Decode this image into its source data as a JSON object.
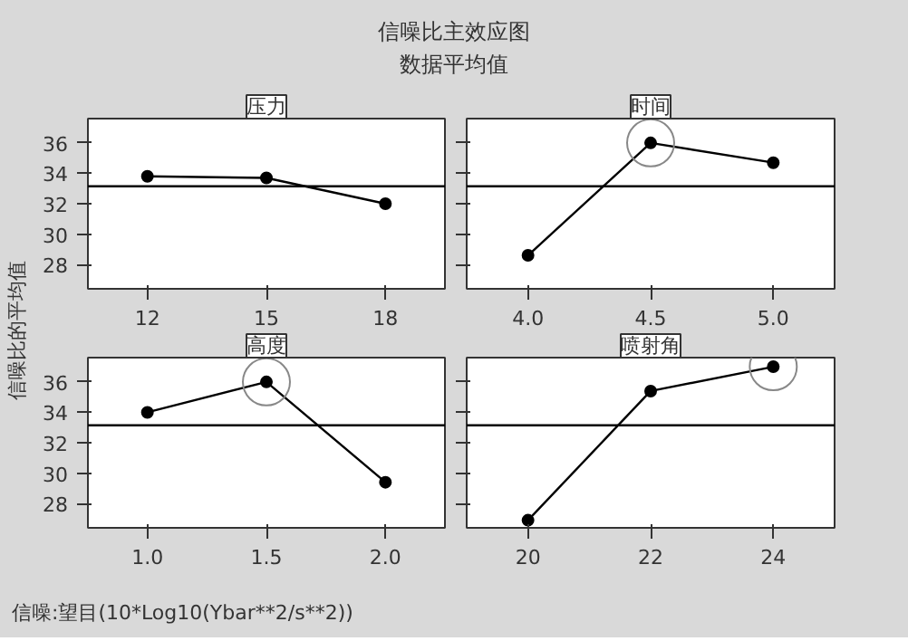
{
  "chart_data": [
    {
      "type": "other",
      "title": "信噪比主效应图",
      "subtitle": "数据平均值",
      "ylabel": "信噪比的平均值",
      "annotations": [
        "信噪:望目(10*Log10(Ybar**2/s**2))"
      ]
    },
    {
      "type": "line",
      "title": "压力",
      "x": [
        12,
        15,
        18
      ],
      "xlim": [
        10.5,
        19.5
      ],
      "xticks": [
        12,
        15,
        18
      ],
      "ylim": [
        26.4,
        37.6
      ],
      "yticks": [
        28,
        30,
        32,
        34,
        36
      ],
      "grid": false,
      "marker": "circle",
      "line_style": "solid",
      "ref_lines": [
        {
          "axis": "y",
          "value": 33.15,
          "color": "#000000"
        }
      ],
      "series": [
        {
          "color": "#000000",
          "values": [
            33.8,
            33.7,
            32.0
          ]
        }
      ]
    },
    {
      "type": "line",
      "title": "时间",
      "x": [
        4.0,
        4.5,
        5.0
      ],
      "xlim": [
        3.75,
        5.25
      ],
      "xticks": [
        {
          "value": 4.0,
          "label": "4.0"
        },
        {
          "value": 4.5,
          "label": "4.5"
        },
        {
          "value": 5.0,
          "label": "5.0"
        }
      ],
      "ylim": [
        26.4,
        37.6
      ],
      "yticks": [
        28,
        30,
        32,
        34,
        36
      ],
      "tick_labels": "x",
      "grid": false,
      "marker": "circle",
      "line_style": "solid",
      "ref_lines": [
        {
          "axis": "y",
          "value": 33.15,
          "color": "#000000"
        }
      ],
      "series": [
        {
          "color": "#000000",
          "values": [
            28.6,
            36.0,
            34.7
          ]
        },
        {
          "type": "scatter",
          "marker": "circle",
          "color": "#888888",
          "x": [
            4.5
          ],
          "values": [
            36.0
          ]
        }
      ]
    },
    {
      "type": "line",
      "title": "高度",
      "x": [
        1.0,
        1.5,
        2.0
      ],
      "xlim": [
        0.75,
        2.25
      ],
      "xticks": [
        {
          "value": 1.0,
          "label": "1.0"
        },
        {
          "value": 1.5,
          "label": "1.5"
        },
        {
          "value": 2.0,
          "label": "2.0"
        }
      ],
      "ylim": [
        26.4,
        37.6
      ],
      "yticks": [
        28,
        30,
        32,
        34,
        36
      ],
      "grid": false,
      "marker": "circle",
      "line_style": "solid",
      "ref_lines": [
        {
          "axis": "y",
          "value": 33.15,
          "color": "#000000"
        }
      ],
      "series": [
        {
          "color": "#000000",
          "values": [
            34.0,
            36.0,
            29.4
          ]
        },
        {
          "type": "scatter",
          "marker": "circle",
          "color": "#888888",
          "x": [
            1.5
          ],
          "values": [
            36.0
          ]
        }
      ]
    },
    {
      "type": "line",
      "title": "喷射角",
      "x": [
        20,
        22,
        24
      ],
      "xlim": [
        19,
        25
      ],
      "xticks": [
        20,
        22,
        24
      ],
      "ylim": [
        26.4,
        37.6
      ],
      "yticks": [
        28,
        30,
        32,
        34,
        36
      ],
      "tick_labels": "x",
      "grid": false,
      "marker": "circle",
      "line_style": "solid",
      "ref_lines": [
        {
          "axis": "y",
          "value": 33.15,
          "color": "#000000"
        }
      ],
      "series": [
        {
          "color": "#000000",
          "values": [
            26.9,
            35.4,
            37.0
          ]
        },
        {
          "type": "scatter",
          "marker": "circle",
          "color": "#888888",
          "x": [
            24
          ],
          "values": [
            37.0
          ]
        }
      ]
    }
  ]
}
